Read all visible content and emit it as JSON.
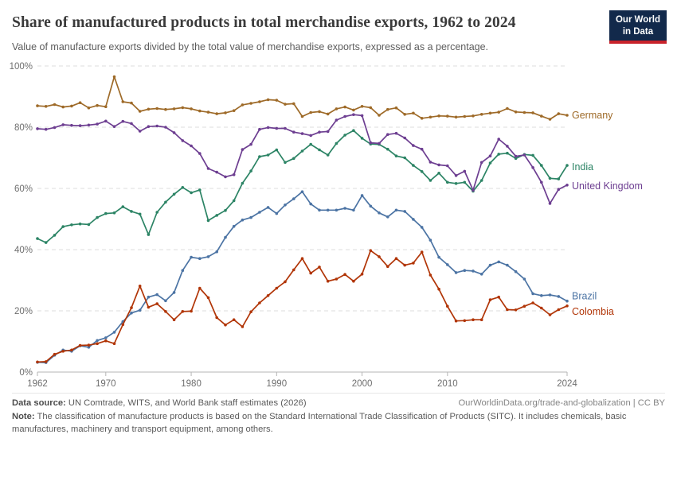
{
  "header": {
    "logo": {
      "line1": "Our World",
      "line2": "in Data"
    }
  },
  "chart_data": {
    "type": "line",
    "title": "Share of manufactured products in total merchandise exports, 1962 to 2024",
    "subtitle": "Value of manufacture exports divided by the total value of merchandise exports, expressed as a percentage.",
    "xlabel": "",
    "ylabel": "",
    "x_domain": [
      1962,
      2024
    ],
    "ylim": [
      0,
      100
    ],
    "y_ticks": [
      0,
      20,
      40,
      60,
      80,
      100
    ],
    "y_tick_suffix": "%",
    "x_ticks": [
      1962,
      1970,
      1980,
      1990,
      2000,
      2010,
      2024
    ],
    "grid": "horizontal-dashed",
    "legend_position": "line-end-labels",
    "years": [
      1962,
      1963,
      1964,
      1965,
      1966,
      1967,
      1968,
      1969,
      1970,
      1971,
      1972,
      1973,
      1974,
      1975,
      1976,
      1977,
      1978,
      1979,
      1980,
      1981,
      1982,
      1983,
      1984,
      1985,
      1986,
      1987,
      1988,
      1989,
      1990,
      1991,
      1992,
      1993,
      1994,
      1995,
      1996,
      1997,
      1998,
      1999,
      2000,
      2001,
      2002,
      2003,
      2004,
      2005,
      2006,
      2007,
      2008,
      2009,
      2010,
      2011,
      2012,
      2013,
      2014,
      2015,
      2016,
      2017,
      2018,
      2019,
      2020,
      2021,
      2022,
      2023,
      2024
    ],
    "series": [
      {
        "name": "Germany",
        "color": "#9e6a28",
        "label_dy": 0,
        "values": [
          87.0,
          86.8,
          87.4,
          86.6,
          86.9,
          88.0,
          86.3,
          87.1,
          86.7,
          96.5,
          88.3,
          87.9,
          85.2,
          85.9,
          86.1,
          85.8,
          86.0,
          86.4,
          86.0,
          85.3,
          84.9,
          84.4,
          84.7,
          85.4,
          87.3,
          87.8,
          88.3,
          89.0,
          88.8,
          87.5,
          87.7,
          83.5,
          84.8,
          85.1,
          84.3,
          86.0,
          86.6,
          85.6,
          86.8,
          86.4,
          83.9,
          85.8,
          86.3,
          84.2,
          84.6,
          82.9,
          83.3,
          83.7,
          83.6,
          83.3,
          83.5,
          83.7,
          84.2,
          84.6,
          84.9,
          86.1,
          85.0,
          84.8,
          84.7,
          83.6,
          82.6,
          84.4,
          83.9
        ]
      },
      {
        "name": "India",
        "color": "#2c8465",
        "label_dy": 2,
        "values": [
          43.6,
          42.3,
          44.7,
          47.5,
          48.1,
          48.4,
          48.2,
          50.5,
          51.8,
          52.0,
          54.0,
          52.5,
          51.6,
          44.9,
          52.2,
          55.5,
          58.1,
          60.3,
          58.6,
          59.5,
          49.5,
          51.2,
          52.8,
          56.0,
          61.7,
          65.7,
          70.4,
          70.9,
          72.6,
          68.5,
          69.8,
          72.2,
          74.4,
          72.6,
          70.9,
          74.7,
          77.4,
          78.9,
          76.4,
          74.5,
          74.4,
          72.8,
          70.6,
          70.0,
          67.5,
          65.5,
          62.6,
          65.0,
          62.0,
          61.6,
          62.0,
          59.1,
          62.6,
          68.3,
          71.2,
          71.5,
          69.8,
          71.1,
          70.8,
          67.5,
          63.3,
          63.1,
          67.5
        ]
      },
      {
        "name": "United Kingdom",
        "color": "#6d3e91",
        "label_dy": 1,
        "values": [
          79.5,
          79.3,
          79.9,
          80.8,
          80.6,
          80.5,
          80.7,
          81.0,
          82.0,
          80.2,
          81.9,
          81.2,
          78.7,
          80.2,
          80.4,
          80.0,
          78.2,
          75.6,
          73.9,
          71.4,
          66.5,
          65.3,
          63.8,
          64.5,
          72.7,
          74.4,
          79.3,
          79.9,
          79.6,
          79.6,
          78.4,
          77.9,
          77.3,
          78.4,
          78.6,
          82.3,
          83.5,
          84.1,
          83.8,
          74.9,
          74.7,
          77.6,
          78.0,
          76.5,
          74.0,
          72.8,
          68.6,
          67.7,
          67.4,
          64.2,
          65.6,
          59.4,
          68.5,
          70.6,
          76.1,
          73.8,
          70.5,
          70.9,
          66.8,
          62.0,
          55.1,
          59.7,
          61.1
        ]
      },
      {
        "name": "Brazil",
        "color": "#4c74a4",
        "label_dy": -6,
        "values": [
          3.2,
          3.1,
          5.5,
          7.2,
          6.8,
          8.6,
          8.1,
          10.3,
          11.2,
          13.0,
          16.5,
          19.3,
          20.2,
          24.5,
          25.3,
          23.3,
          26.0,
          33.2,
          37.5,
          37.1,
          37.7,
          39.3,
          44.0,
          47.6,
          49.7,
          50.5,
          52.2,
          53.8,
          51.8,
          54.6,
          56.6,
          58.9,
          54.9,
          52.9,
          52.9,
          52.9,
          53.5,
          52.9,
          57.7,
          54.2,
          52.0,
          50.7,
          52.9,
          52.5,
          49.9,
          47.3,
          43.1,
          37.5,
          35.1,
          32.5,
          33.2,
          33.0,
          32.0,
          34.9,
          36.0,
          34.9,
          32.8,
          30.4,
          25.6,
          25.0,
          25.2,
          24.7,
          23.2
        ]
      },
      {
        "name": "Colombia",
        "color": "#b13507",
        "label_dy": 7,
        "values": [
          3.3,
          3.4,
          5.8,
          6.8,
          7.2,
          8.7,
          8.8,
          9.3,
          10.2,
          9.3,
          15.5,
          21.0,
          28.1,
          21.2,
          22.3,
          19.8,
          17.1,
          19.8,
          19.9,
          27.4,
          24.3,
          17.8,
          15.4,
          17.1,
          14.8,
          19.7,
          22.6,
          25.0,
          27.4,
          29.5,
          33.4,
          37.1,
          32.3,
          34.3,
          29.7,
          30.4,
          31.9,
          29.7,
          32.0,
          39.7,
          37.7,
          34.5,
          37.1,
          34.9,
          35.6,
          39.2,
          31.7,
          27.1,
          21.5,
          16.7,
          16.8,
          17.1,
          17.1,
          23.6,
          24.5,
          20.4,
          20.3,
          21.5,
          22.6,
          20.9,
          18.7,
          20.4,
          21.6
        ]
      }
    ]
  },
  "footer": {
    "source_label": "Data source:",
    "source_text": " UN Comtrade, WITS, and World Bank staff estimates (2026)",
    "link": "OurWorldinData.org/trade-and-globalization",
    "separator": "|",
    "license": "CC BY",
    "note_label": "Note:",
    "note_text": " The classification of manufacture products is based on the Standard International Trade Classification of Products (SITC). It includes chemicals, basic manufactures, machinery and transport equipment, among others."
  },
  "colors": {
    "grid": "#dcdcdc",
    "axis": "#b5b5b5",
    "tick_text": "#6e6e6e",
    "title_text": "#3a3a3a",
    "subtitle_text": "#5c5c5c",
    "logo_bg": "#12294b",
    "logo_stripe": "#c8222b"
  }
}
